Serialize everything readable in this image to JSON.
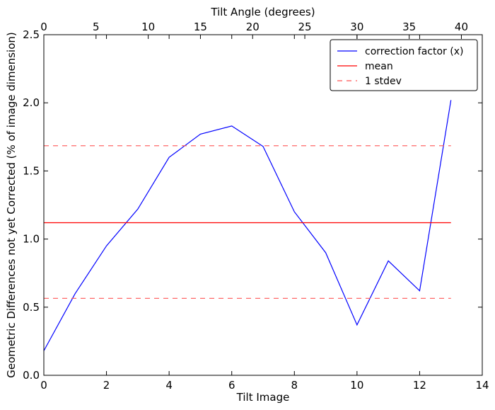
{
  "chart_data": {
    "type": "line",
    "xlabel": "Tilt Image",
    "ylabel": "Geometric Differences not yet Corrected (% of image dimension)",
    "x2label": "Tilt Angle (degrees)",
    "xlim": [
      0,
      14
    ],
    "ylim": [
      0,
      2.5
    ],
    "x2lim": [
      0,
      42
    ],
    "xticks": [
      "0",
      "2",
      "4",
      "6",
      "8",
      "10",
      "12",
      "14"
    ],
    "yticks": [
      "0.0",
      "0.5",
      "1.0",
      "1.5",
      "2.0",
      "2.5"
    ],
    "x2ticks": [
      "0",
      "5",
      "10",
      "15",
      "20",
      "25",
      "30",
      "35",
      "40"
    ],
    "grid": false,
    "legend_position": "top-right",
    "series": [
      {
        "name": "correction factor (x)",
        "color": "#0000ff",
        "style": "solid",
        "x": [
          0,
          1,
          2,
          3,
          4,
          5,
          6,
          7,
          8,
          9,
          10,
          11,
          12,
          13
        ],
        "y": [
          0.18,
          0.6,
          0.95,
          1.22,
          1.6,
          1.77,
          1.83,
          1.68,
          1.2,
          0.9,
          0.37,
          0.84,
          0.62,
          2.02
        ]
      },
      {
        "name": "mean",
        "color": "#ff0000",
        "style": "solid",
        "x": [
          0,
          13
        ],
        "y": [
          1.12,
          1.12
        ]
      },
      {
        "name": "1 stdev",
        "color": "#ff5555",
        "style": "dashed",
        "x": [
          0,
          13
        ],
        "y": [
          1.685,
          1.685
        ]
      },
      {
        "name": "1 stdev",
        "color": "#ff5555",
        "style": "dashed",
        "x": [
          0,
          13
        ],
        "y": [
          0.565,
          0.565
        ]
      }
    ],
    "legend": [
      "correction factor (x)",
      "mean",
      "1 stdev"
    ]
  }
}
